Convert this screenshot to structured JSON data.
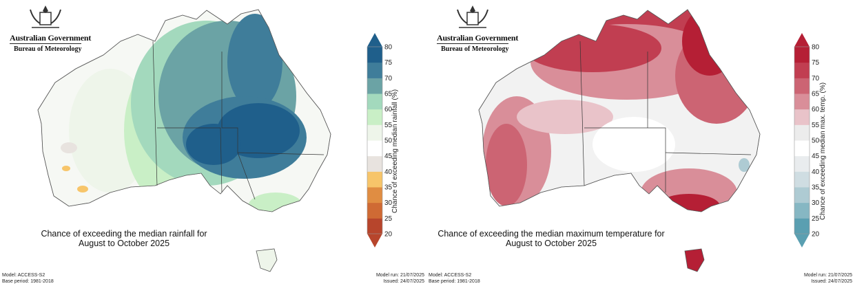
{
  "logo": {
    "government": "Australian Government",
    "bureau": "Bureau of Meteorology",
    "icon": "coat-of-arms-icon"
  },
  "rainfall": {
    "caption_line1": "Chance of exceeding the median rainfall for",
    "caption_line2": "August to October 2025",
    "colorbar_label": "Chance of exceeding median rainfall (%)",
    "colorbar_ticks": [
      20,
      25,
      30,
      35,
      40,
      45,
      50,
      55,
      60,
      65,
      70,
      75,
      80
    ],
    "colorbar_colors": [
      "#b7452c",
      "#cf6a34",
      "#e08d42",
      "#f7c56a",
      "#e8e3df",
      "#ffffff",
      "#eef5ea",
      "#c9efc6",
      "#a3d9bd",
      "#6ba3a5",
      "#3f7d9a",
      "#1f5f8b"
    ],
    "model": "Model: ACCESS-S2",
    "base_period": "Base period: 1981-2018",
    "model_run": "Model run: 21/07/2025",
    "issued": "Issued: 24/07/2025"
  },
  "temperature": {
    "caption_line1": "Chance of exceeding the median maximum temperature for",
    "caption_line2": "August to October 2025",
    "colorbar_label": "Chance of exceeding median max. temp. (%)",
    "colorbar_ticks": [
      20,
      25,
      30,
      35,
      40,
      45,
      50,
      55,
      60,
      65,
      70,
      75,
      80
    ],
    "colorbar_colors": [
      "#5a9fb1",
      "#86b7c3",
      "#aecbd3",
      "#cfdde2",
      "#e9ecee",
      "#ffffff",
      "#ececec",
      "#e9c3c9",
      "#d98e99",
      "#cc6473",
      "#c13e51",
      "#b51f35"
    ],
    "model": "Model: ACCESS-S2",
    "base_period": "Base period: 1981-2018",
    "model_run": "Model run: 21/07/2025",
    "issued": "Issued: 24/07/2025"
  }
}
